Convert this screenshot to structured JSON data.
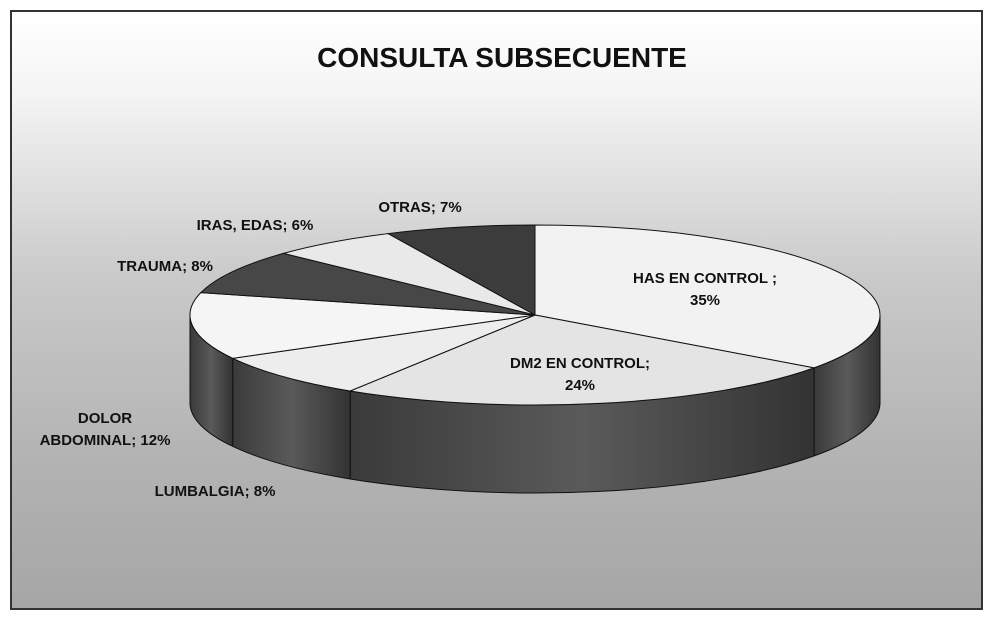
{
  "chart_data": {
    "type": "pie3d",
    "title": "CONSULTA SUBSECUENTE",
    "categories": [
      "HAS EN CONTROL ;",
      "DM2 EN CONTROL;",
      "LUMBALGIA;",
      "DOLOR ABDOMINAL;",
      "TRAUMA;",
      "IRAS, EDAS;",
      "OTRAS;"
    ],
    "values": [
      35,
      24,
      8,
      12,
      8,
      6,
      7
    ],
    "value_labels": [
      "35%",
      "24%",
      "8%",
      "12%",
      "8%",
      "6%",
      "7%"
    ],
    "colors": [
      "#f2f2f2",
      "#e4e4e4",
      "#ededed",
      "#f5f5f5",
      "#474747",
      "#e9e9e9",
      "#3c3c3c"
    ]
  }
}
